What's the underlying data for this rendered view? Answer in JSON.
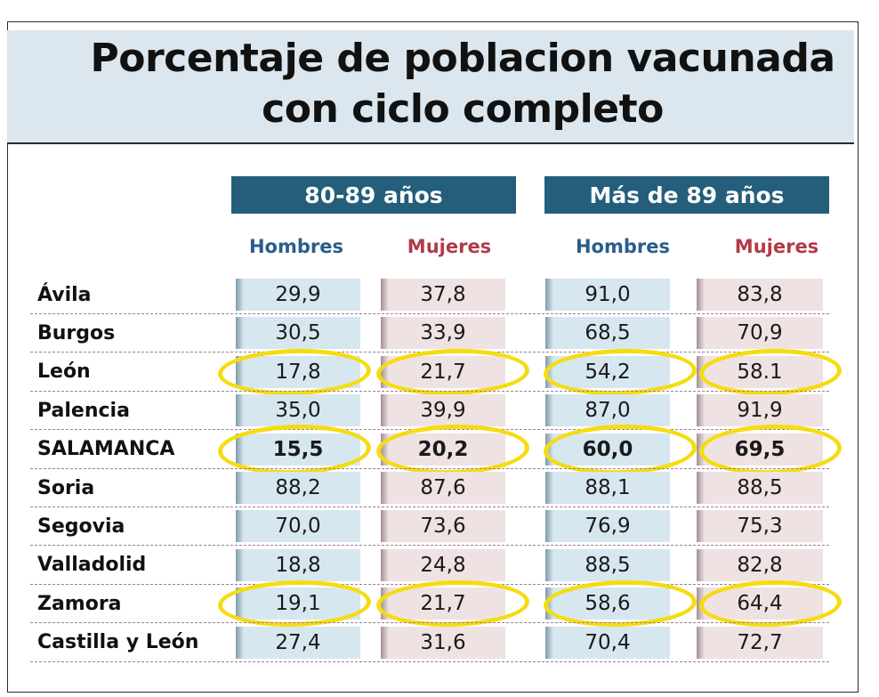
{
  "title": {
    "line1": "Porcentaje de poblacion vacunada",
    "line2": "con ciclo completo"
  },
  "colors": {
    "title_band": "#dbe6ee",
    "group_header": "#245e7a",
    "hombres_text": "#2a5d8a",
    "mujeres_text": "#b23a48",
    "hombres_cell": "#d6e7f0",
    "mujeres_cell": "#efe2e2",
    "highlight": "#f5dc12"
  },
  "chart_data": {
    "type": "table",
    "groups": [
      {
        "label": "80-89 años",
        "columns": [
          "Hombres",
          "Mujeres"
        ]
      },
      {
        "label": "Más de 89 años",
        "columns": [
          "Hombres",
          "Mujeres"
        ]
      }
    ],
    "rows": [
      {
        "label": "Ávila",
        "values": [
          "29,9",
          "37,8",
          "91,0",
          "83,8"
        ],
        "bold": false,
        "highlighted": false
      },
      {
        "label": "Burgos",
        "values": [
          "30,5",
          "33,9",
          "68,5",
          "70,9"
        ],
        "bold": false,
        "highlighted": false
      },
      {
        "label": "León",
        "values": [
          "17,8",
          "21,7",
          "54,2",
          "58.1"
        ],
        "bold": false,
        "highlighted": true
      },
      {
        "label": "Palencia",
        "values": [
          "35,0",
          "39,9",
          "87,0",
          "91,9"
        ],
        "bold": false,
        "highlighted": false
      },
      {
        "label": "SALAMANCA",
        "values": [
          "15,5",
          "20,2",
          "60,0",
          "69,5"
        ],
        "bold": true,
        "highlighted": true
      },
      {
        "label": "Soria",
        "values": [
          "88,2",
          "87,6",
          "88,1",
          "88,5"
        ],
        "bold": false,
        "highlighted": false
      },
      {
        "label": "Segovia",
        "values": [
          "70,0",
          "73,6",
          "76,9",
          "75,3"
        ],
        "bold": false,
        "highlighted": false
      },
      {
        "label": "Valladolid",
        "values": [
          "18,8",
          "24,8",
          "88,5",
          "82,8"
        ],
        "bold": false,
        "highlighted": false
      },
      {
        "label": "Zamora",
        "values": [
          "19,1",
          "21,7",
          "58,6",
          "64,4"
        ],
        "bold": false,
        "highlighted": true
      },
      {
        "label": "Castilla y León",
        "values": [
          "27,4",
          "31,6",
          "70,4",
          "72,7"
        ],
        "bold": false,
        "highlighted": false
      }
    ]
  }
}
